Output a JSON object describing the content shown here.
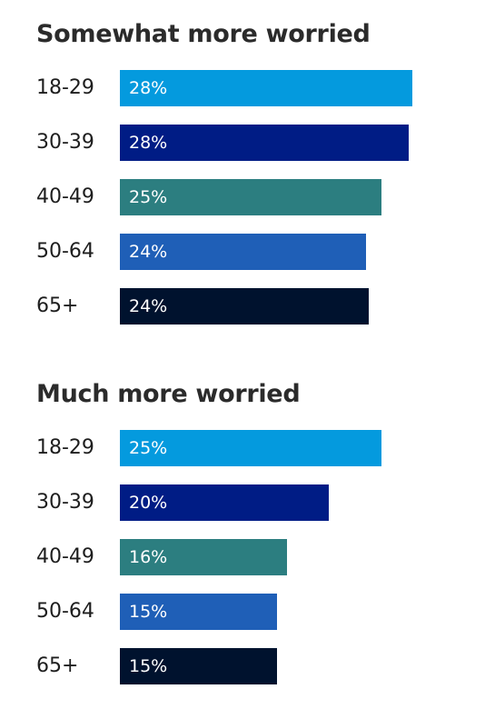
{
  "chart_data": [
    {
      "type": "bar",
      "orientation": "horizontal",
      "title": "Somewhat more worried",
      "categories": [
        "18-29",
        "30-39",
        "40-49",
        "50-64",
        "65+"
      ],
      "values": [
        28,
        28,
        25,
        24,
        24
      ],
      "value_labels": [
        "28%",
        "28%",
        "25%",
        "24%",
        "24%"
      ],
      "colors": [
        "#049ade",
        "#001c85",
        "#2c7e80",
        "#1f5fb7",
        "#00122e"
      ]
    },
    {
      "type": "bar",
      "orientation": "horizontal",
      "title": "Much more worried",
      "categories": [
        "18-29",
        "30-39",
        "40-49",
        "50-64",
        "65+"
      ],
      "values": [
        25,
        20,
        16,
        15,
        15
      ],
      "value_labels": [
        "25%",
        "20%",
        "16%",
        "15%",
        "15%"
      ],
      "colors": [
        "#049ade",
        "#001c85",
        "#2c7e80",
        "#1f5fb7",
        "#00122e"
      ]
    }
  ]
}
